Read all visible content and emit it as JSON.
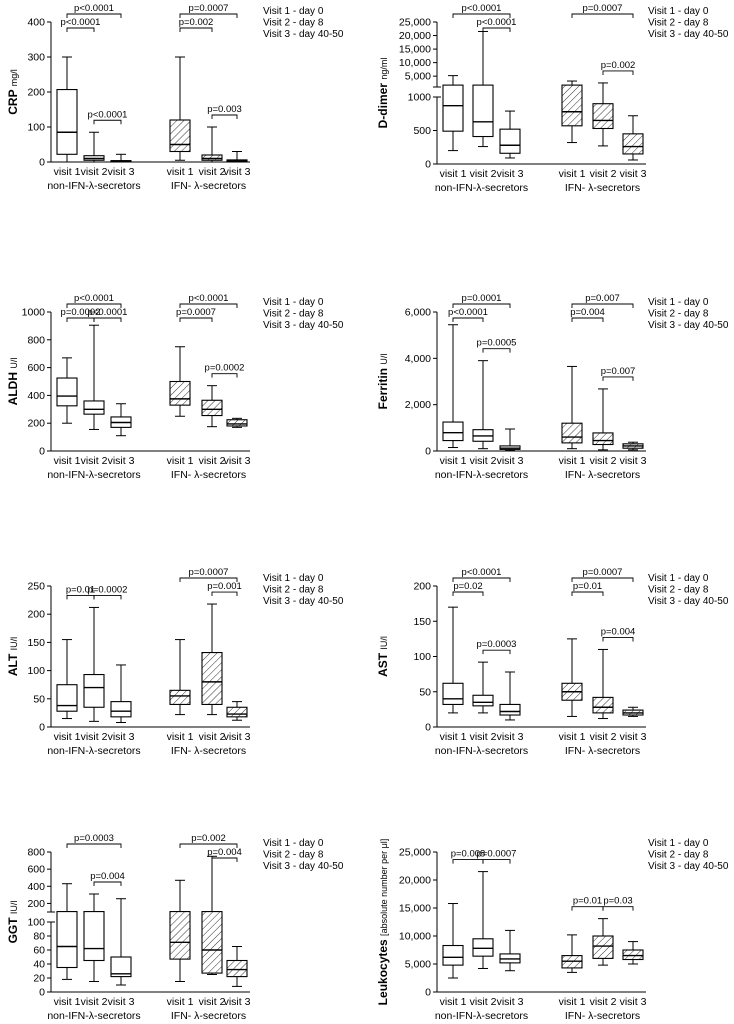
{
  "legend": [
    "Visit 1 - day 0",
    "Visit 2 - day 8",
    "Visit 3 - day 40-50"
  ],
  "chart_data": [
    {
      "type": "boxplot",
      "ylabel": "CRP",
      "yunit": "mg/l",
      "ylim": [
        0,
        400
      ],
      "yticks": [
        "0",
        "100",
        "200",
        "300",
        "400"
      ],
      "categories": [
        "visit 1",
        "visit 2",
        "visit 3",
        "visit 1",
        "visit 2",
        "visit 3"
      ],
      "group_labels": [
        "non-IFN-λ-secretors",
        "IFN- λ-secretors"
      ],
      "series": [
        {
          "name": "non-IFN-λ-secretors",
          "boxes": [
            {
              "min": 0,
              "q1": 22,
              "median": 85,
              "q3": 207,
              "max": 300
            },
            {
              "min": 0,
              "q1": 5,
              "median": 10,
              "q3": 18,
              "max": 85
            },
            {
              "min": 0,
              "q1": 1,
              "median": 2,
              "q3": 4,
              "max": 22
            }
          ]
        },
        {
          "name": "IFN- λ-secretors",
          "hatched": true,
          "boxes": [
            {
              "min": 5,
              "q1": 30,
              "median": 50,
              "q3": 120,
              "max": 300
            },
            {
              "min": 0,
              "q1": 5,
              "median": 10,
              "q3": 20,
              "max": 100
            },
            {
              "min": 0,
              "q1": 1,
              "median": 3,
              "q3": 6,
              "max": 30
            }
          ]
        }
      ],
      "brackets": [
        {
          "from": 0,
          "to": 2,
          "label": "p<0.0001"
        },
        {
          "from": 0,
          "to": 1,
          "label": "p<0.0001"
        },
        {
          "from": 1,
          "to": 2,
          "label": "p<0.0001"
        },
        {
          "from": 3,
          "to": 5,
          "label": "p=0.0007"
        },
        {
          "from": 3,
          "to": 4,
          "label": "p=0.002"
        },
        {
          "from": 4,
          "to": 5,
          "label": "p=0.003"
        }
      ]
    },
    {
      "type": "boxplot",
      "ylabel": "D-dimer",
      "yunit": "ng/ml",
      "broken_axis": true,
      "lower_ylim": [
        0,
        1000
      ],
      "upper_ylim": [
        1000,
        25000
      ],
      "yticks_lower": [
        "0",
        "500",
        "1000"
      ],
      "yticks_upper": [
        "5,000",
        "10,000",
        "15,000",
        "20,000",
        "25,000"
      ],
      "categories": [
        "visit 1",
        "visit 2",
        "visit 3",
        "visit 1",
        "visit 2",
        "visit 3"
      ],
      "group_labels": [
        "non-IFN-λ-secretors",
        "IFN- λ-secretors"
      ],
      "series": [
        {
          "name": "non-IFN-λ-secretors",
          "boxes": [
            {
              "min": 200,
              "q1": 490,
              "median": 870,
              "q3": 1700,
              "max": 5200
            },
            {
              "min": 260,
              "q1": 410,
              "median": 630,
              "q3": 1700,
              "max": 21500
            },
            {
              "min": 90,
              "q1": 160,
              "median": 280,
              "q3": 520,
              "max": 790
            }
          ]
        },
        {
          "name": "IFN- λ-secretors",
          "hatched": true,
          "boxes": [
            {
              "min": 320,
              "q1": 570,
              "median": 780,
              "q3": 1700,
              "max": 3200
            },
            {
              "min": 270,
              "q1": 530,
              "median": 650,
              "q3": 900,
              "max": 2500
            },
            {
              "min": 60,
              "q1": 150,
              "median": 260,
              "q3": 450,
              "max": 720
            }
          ]
        }
      ],
      "brackets": [
        {
          "from": 0,
          "to": 2,
          "label": "p<0.0001"
        },
        {
          "from": 1,
          "to": 2,
          "label": "p<0.0001"
        },
        {
          "from": 3,
          "to": 5,
          "label": "p=0.0007"
        },
        {
          "from": 4,
          "to": 5,
          "label": "p=0.002"
        }
      ]
    },
    {
      "type": "boxplot",
      "ylabel": "ALDH",
      "yunit": "U/l",
      "ylim": [
        0,
        1000
      ],
      "yticks": [
        "0",
        "200",
        "400",
        "600",
        "800",
        "1000"
      ],
      "categories": [
        "visit 1",
        "visit 2",
        "visit 3",
        "visit 1",
        "visit 2",
        "visit 3"
      ],
      "group_labels": [
        "non-IFN-λ-secretors",
        "IFN- λ-secretors"
      ],
      "series": [
        {
          "name": "non-IFN-λ-secretors",
          "boxes": [
            {
              "min": 200,
              "q1": 325,
              "median": 395,
              "q3": 525,
              "max": 670
            },
            {
              "min": 155,
              "q1": 265,
              "median": 300,
              "q3": 360,
              "max": 905
            },
            {
              "min": 110,
              "q1": 170,
              "median": 205,
              "q3": 245,
              "max": 340
            }
          ]
        },
        {
          "name": "IFN- λ-secretors",
          "hatched": true,
          "boxes": [
            {
              "min": 250,
              "q1": 330,
              "median": 375,
              "q3": 500,
              "max": 750
            },
            {
              "min": 175,
              "q1": 255,
              "median": 300,
              "q3": 365,
              "max": 470
            },
            {
              "min": 170,
              "q1": 180,
              "median": 195,
              "q3": 225,
              "max": 235
            }
          ]
        }
      ],
      "brackets": [
        {
          "from": 0,
          "to": 2,
          "label": "p<0.0001"
        },
        {
          "from": 0,
          "to": 1,
          "label": "p=0.0002"
        },
        {
          "from": 1,
          "to": 2,
          "label": "p<0.0001"
        },
        {
          "from": 3,
          "to": 5,
          "label": "p<0.0001"
        },
        {
          "from": 3,
          "to": 4,
          "label": "p=0.0007"
        },
        {
          "from": 4,
          "to": 5,
          "label": "p=0.0002"
        }
      ]
    },
    {
      "type": "boxplot",
      "ylabel": "Ferritin",
      "yunit": "U/l",
      "ylim": [
        0,
        6000
      ],
      "yticks": [
        "0",
        "2,000",
        "4,000",
        "6,000"
      ],
      "categories": [
        "visit 1",
        "visit 2",
        "visit 3",
        "visit 1",
        "visit 2",
        "visit 3"
      ],
      "group_labels": [
        "non-IFN-λ-secretors",
        "IFN- λ-secretors"
      ],
      "series": [
        {
          "name": "non-IFN-λ-secretors",
          "boxes": [
            {
              "min": 150,
              "q1": 450,
              "median": 790,
              "q3": 1250,
              "max": 5450
            },
            {
              "min": 100,
              "q1": 420,
              "median": 650,
              "q3": 920,
              "max": 3900
            },
            {
              "min": 20,
              "q1": 70,
              "median": 120,
              "q3": 220,
              "max": 950
            }
          ]
        },
        {
          "name": "IFN- λ-secretors",
          "hatched": true,
          "boxes": [
            {
              "min": 100,
              "q1": 350,
              "median": 600,
              "q3": 1200,
              "max": 3650
            },
            {
              "min": 50,
              "q1": 280,
              "median": 450,
              "q3": 780,
              "max": 2680
            },
            {
              "min": 50,
              "q1": 120,
              "median": 220,
              "q3": 310,
              "max": 380
            }
          ]
        }
      ],
      "brackets": [
        {
          "from": 0,
          "to": 2,
          "label": "p=0.0001"
        },
        {
          "from": 0,
          "to": 1,
          "label": "p<0.0001"
        },
        {
          "from": 1,
          "to": 2,
          "label": "p=0.0005"
        },
        {
          "from": 3,
          "to": 5,
          "label": "p=0.007"
        },
        {
          "from": 3,
          "to": 4,
          "label": "p=0.004"
        },
        {
          "from": 4,
          "to": 5,
          "label": "p=0.007"
        }
      ]
    },
    {
      "type": "boxplot",
      "ylabel": "ALT",
      "yunit": "IU/l",
      "ylim": [
        0,
        250
      ],
      "yticks": [
        "0",
        "50",
        "100",
        "150",
        "200",
        "250"
      ],
      "categories": [
        "visit 1",
        "visit 2",
        "visit 3",
        "visit 1",
        "visit 2",
        "visit 3"
      ],
      "group_labels": [
        "non-IFN-λ-secretors",
        "IFN- λ-secretors"
      ],
      "series": [
        {
          "name": "non-IFN-λ-secretors",
          "boxes": [
            {
              "min": 15,
              "q1": 28,
              "median": 38,
              "q3": 75,
              "max": 155
            },
            {
              "min": 10,
              "q1": 35,
              "median": 70,
              "q3": 93,
              "max": 212
            },
            {
              "min": 8,
              "q1": 18,
              "median": 28,
              "q3": 45,
              "max": 110
            }
          ]
        },
        {
          "name": "IFN- λ-secretors",
          "hatched": true,
          "boxes": [
            {
              "min": 22,
              "q1": 40,
              "median": 55,
              "q3": 65,
              "max": 155
            },
            {
              "min": 22,
              "q1": 40,
              "median": 80,
              "q3": 132,
              "max": 218
            },
            {
              "min": 12,
              "q1": 18,
              "median": 23,
              "q3": 35,
              "max": 45
            }
          ]
        }
      ],
      "brackets": [
        {
          "from": 0,
          "to": 1,
          "label": "p=0.01"
        },
        {
          "from": 1,
          "to": 2,
          "label": "p=0.0002"
        },
        {
          "from": 3,
          "to": 5,
          "label": "p=0.0007"
        },
        {
          "from": 4,
          "to": 5,
          "label": "p=0.001"
        }
      ]
    },
    {
      "type": "boxplot",
      "ylabel": "AST",
      "yunit": "IU/l",
      "ylim": [
        0,
        200
      ],
      "yticks": [
        "0",
        "50",
        "100",
        "150",
        "200"
      ],
      "categories": [
        "visit 1",
        "visit 2",
        "visit 3",
        "visit 1",
        "visit 2",
        "visit 3"
      ],
      "group_labels": [
        "non-IFN-λ-secretors",
        "IFN- λ-secretors"
      ],
      "series": [
        {
          "name": "non-IFN-λ-secretors",
          "boxes": [
            {
              "min": 20,
              "q1": 32,
              "median": 40,
              "q3": 62,
              "max": 170
            },
            {
              "min": 20,
              "q1": 30,
              "median": 35,
              "q3": 45,
              "max": 92
            },
            {
              "min": 10,
              "q1": 17,
              "median": 22,
              "q3": 32,
              "max": 78
            }
          ]
        },
        {
          "name": "IFN- λ-secretors",
          "hatched": true,
          "boxes": [
            {
              "min": 15,
              "q1": 38,
              "median": 50,
              "q3": 62,
              "max": 125
            },
            {
              "min": 12,
              "q1": 20,
              "median": 28,
              "q3": 42,
              "max": 110
            },
            {
              "min": 15,
              "q1": 17,
              "median": 20,
              "q3": 24,
              "max": 28
            }
          ]
        }
      ],
      "brackets": [
        {
          "from": 0,
          "to": 2,
          "label": "p<0.0001"
        },
        {
          "from": 0,
          "to": 1,
          "label": "p=0.02"
        },
        {
          "from": 1,
          "to": 2,
          "label": "p=0.0003"
        },
        {
          "from": 3,
          "to": 5,
          "label": "p=0.0007"
        },
        {
          "from": 3,
          "to": 4,
          "label": "p=0.01"
        },
        {
          "from": 4,
          "to": 5,
          "label": "p=0.004"
        }
      ]
    },
    {
      "type": "boxplot",
      "ylabel": "GGT",
      "yunit": "IU/l",
      "broken_axis": true,
      "lower_ylim": [
        0,
        100
      ],
      "upper_ylim": [
        100,
        800
      ],
      "yticks_lower": [
        "0",
        "20",
        "40",
        "60",
        "80",
        "100"
      ],
      "yticks_upper": [
        "200",
        "400",
        "600",
        "800"
      ],
      "categories": [
        "visit 1",
        "visit 2",
        "visit 3",
        "visit 1",
        "visit 2",
        "visit 3"
      ],
      "group_labels": [
        "non-IFN-λ-secretors",
        "IFN- λ-secretors"
      ],
      "series": [
        {
          "name": "non-IFN-λ-secretors",
          "boxes": [
            {
              "min": 18,
              "q1": 35,
              "median": 65,
              "q3": 105,
              "max": 430
            },
            {
              "min": 15,
              "q1": 45,
              "median": 62,
              "q3": 105,
              "max": 310
            },
            {
              "min": 10,
              "q1": 22,
              "median": 26,
              "q3": 50,
              "max": 255
            }
          ]
        },
        {
          "name": "IFN- λ-secretors",
          "hatched": true,
          "boxes": [
            {
              "min": 15,
              "q1": 47,
              "median": 71,
              "q3": 105,
              "max": 470
            },
            {
              "min": 25,
              "q1": 27,
              "median": 60,
              "q3": 105,
              "max": 750
            },
            {
              "min": 8,
              "q1": 22,
              "median": 32,
              "q3": 45,
              "max": 65
            }
          ]
        }
      ],
      "brackets": [
        {
          "from": 0,
          "to": 2,
          "label": "p=0.0003"
        },
        {
          "from": 1,
          "to": 2,
          "label": "p=0.004"
        },
        {
          "from": 3,
          "to": 5,
          "label": "p=0.002"
        },
        {
          "from": 4,
          "to": 5,
          "label": "p=0.004"
        }
      ]
    },
    {
      "type": "boxplot",
      "ylabel": "Leukocytes",
      "yunit": "[absolute number per μl]",
      "ylim": [
        0,
        25000
      ],
      "yticks": [
        "0",
        "5,000",
        "10,000",
        "15,000",
        "20,000",
        "25,000"
      ],
      "categories": [
        "visit 1",
        "visit 2",
        "visit 3",
        "visit 1",
        "visit 2",
        "visit 3"
      ],
      "group_labels": [
        "non-IFN-λ-secretors",
        "IFN- λ-secretors"
      ],
      "series": [
        {
          "name": "non-IFN-λ-secretors",
          "boxes": [
            {
              "min": 2500,
              "q1": 4800,
              "median": 6200,
              "q3": 8300,
              "max": 15800
            },
            {
              "min": 4200,
              "q1": 6400,
              "median": 7800,
              "q3": 9500,
              "max": 21500
            },
            {
              "min": 3800,
              "q1": 5200,
              "median": 5900,
              "q3": 6800,
              "max": 11000
            }
          ]
        },
        {
          "name": "IFN- λ-secretors",
          "hatched": true,
          "boxes": [
            {
              "min": 3500,
              "q1": 4300,
              "median": 5500,
              "q3": 6500,
              "max": 10200
            },
            {
              "min": 4800,
              "q1": 6000,
              "median": 8200,
              "q3": 10000,
              "max": 13100
            },
            {
              "min": 5000,
              "q1": 5800,
              "median": 6500,
              "q3": 7500,
              "max": 9000
            }
          ]
        }
      ],
      "brackets": [
        {
          "from": 0,
          "to": 1,
          "label": "p=0.008"
        },
        {
          "from": 1,
          "to": 2,
          "label": "p=0.0007"
        },
        {
          "from": 3,
          "to": 4,
          "label": "p=0.01"
        },
        {
          "from": 4,
          "to": 5,
          "label": "p=0.03"
        }
      ]
    }
  ]
}
